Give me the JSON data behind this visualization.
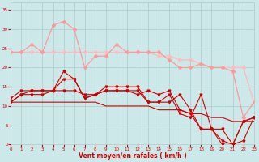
{
  "x": [
    0,
    1,
    2,
    3,
    4,
    5,
    6,
    7,
    8,
    9,
    10,
    11,
    12,
    13,
    14,
    15,
    16,
    17,
    18,
    19,
    20,
    21,
    22,
    23
  ],
  "line_flat": [
    24,
    24,
    24,
    24,
    24,
    24,
    24,
    24,
    24,
    24,
    24,
    24,
    24,
    24,
    23,
    23,
    22,
    22,
    21,
    20,
    20,
    20,
    20,
    11
  ],
  "line_peak": [
    24,
    24,
    26,
    24,
    31,
    32,
    30,
    20,
    23,
    23,
    26,
    24,
    24,
    24,
    24,
    22,
    20,
    20,
    21,
    20,
    20,
    19,
    7,
    11
  ],
  "line_diag": [
    11,
    11,
    11,
    11,
    11,
    11,
    11,
    11,
    11,
    10,
    10,
    10,
    10,
    10,
    9,
    9,
    9,
    8,
    8,
    7,
    7,
    6,
    6,
    6
  ],
  "line_a": [
    11,
    13,
    14,
    14,
    14,
    19,
    17,
    12,
    13,
    14,
    14,
    14,
    14,
    11,
    11,
    13,
    8,
    7,
    13,
    4,
    4,
    0,
    6,
    7
  ],
  "line_b": [
    12,
    14,
    14,
    14,
    14,
    17,
    17,
    12,
    13,
    15,
    15,
    15,
    15,
    11,
    11,
    11,
    13,
    9,
    4,
    4,
    0,
    0,
    6,
    7
  ],
  "line_c": [
    11,
    13,
    13,
    13,
    14,
    14,
    14,
    13,
    13,
    14,
    14,
    14,
    13,
    14,
    13,
    14,
    9,
    8,
    4,
    4,
    1,
    0,
    1,
    7
  ],
  "color_light1": "#ffbbbb",
  "color_light2": "#ff9999",
  "color_dark": "#cc0000",
  "bg_color": "#cce8e8",
  "grid_color": "#aacccc",
  "xlabel": "Vent moyen/en rafales ( km/h )",
  "ylim": [
    0,
    37
  ],
  "xlim": [
    0,
    23
  ]
}
